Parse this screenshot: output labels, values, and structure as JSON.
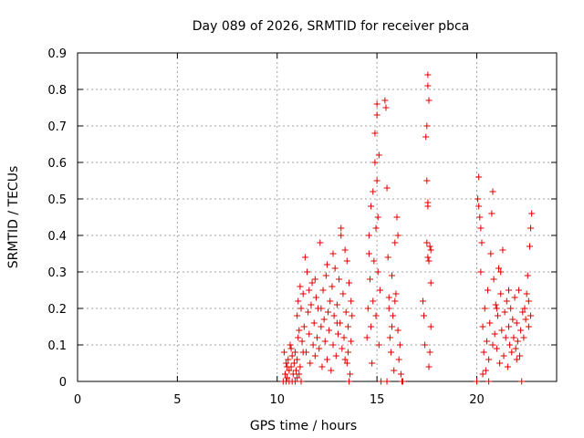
{
  "chart_data": {
    "type": "scatter",
    "title": "Day 089 of 2026, SRMTID for receiver pbca",
    "xlabel": "GPS time / hours",
    "ylabel": "SRMTID / TECUs",
    "xlim": [
      0,
      24
    ],
    "ylim": [
      0,
      0.9
    ],
    "xticks": [
      0,
      5,
      10,
      15,
      20
    ],
    "yticks": [
      0,
      0.1,
      0.2,
      0.3,
      0.4,
      0.5,
      0.6,
      0.7,
      0.8,
      0.9
    ],
    "grid": true,
    "legend": "none",
    "marker": "+",
    "color": "#dd0000",
    "series": [
      {
        "points": [
          [
            10.3,
            0.0
          ],
          [
            10.35,
            0.08
          ],
          [
            10.4,
            0.02
          ],
          [
            10.45,
            0.05
          ],
          [
            10.5,
            0.01
          ],
          [
            10.55,
            0.06
          ],
          [
            10.6,
            0.03
          ],
          [
            10.65,
            0.1
          ],
          [
            10.7,
            0.04
          ],
          [
            10.75,
            0.07
          ],
          [
            10.8,
            0.02
          ],
          [
            10.85,
            0.05
          ],
          [
            10.9,
            0.08
          ],
          [
            10.95,
            0.03
          ],
          [
            11.0,
            0.06
          ],
          [
            11.05,
            0.12
          ],
          [
            11.1,
            0.02
          ],
          [
            10.45,
            0.0
          ],
          [
            10.6,
            0.0
          ],
          [
            10.75,
            0.0
          ],
          [
            10.9,
            0.0
          ],
          [
            11.2,
            0.0
          ],
          [
            10.5,
            0.04
          ],
          [
            10.7,
            0.09
          ],
          [
            11.0,
            0.01
          ],
          [
            11.15,
            0.04
          ],
          [
            11.0,
            0.18
          ],
          [
            11.05,
            0.22
          ],
          [
            11.1,
            0.14
          ],
          [
            11.15,
            0.26
          ],
          [
            11.2,
            0.2
          ],
          [
            11.25,
            0.11
          ],
          [
            11.3,
            0.24
          ],
          [
            11.35,
            0.15
          ],
          [
            11.4,
            0.34
          ],
          [
            11.45,
            0.08
          ],
          [
            11.5,
            0.3
          ],
          [
            11.55,
            0.19
          ],
          [
            11.6,
            0.13
          ],
          [
            11.65,
            0.05
          ],
          [
            11.7,
            0.21
          ],
          [
            11.75,
            0.27
          ],
          [
            11.8,
            0.1
          ],
          [
            11.85,
            0.16
          ],
          [
            11.9,
            0.07
          ],
          [
            11.95,
            0.23
          ],
          [
            12.0,
            0.12
          ],
          [
            12.05,
            0.2
          ],
          [
            12.1,
            0.09
          ],
          [
            12.15,
            0.38
          ],
          [
            12.2,
            0.15
          ],
          [
            12.25,
            0.04
          ],
          [
            12.3,
            0.25
          ],
          [
            12.35,
            0.17
          ],
          [
            12.4,
            0.11
          ],
          [
            12.45,
            0.29
          ],
          [
            12.5,
            0.06
          ],
          [
            12.55,
            0.19
          ],
          [
            12.6,
            0.14
          ],
          [
            12.65,
            0.22
          ],
          [
            12.7,
            0.03
          ],
          [
            12.75,
            0.26
          ],
          [
            12.8,
            0.1
          ],
          [
            12.85,
            0.18
          ],
          [
            12.9,
            0.31
          ],
          [
            12.95,
            0.07
          ],
          [
            13.0,
            0.21
          ],
          [
            13.05,
            0.13
          ],
          [
            13.1,
            0.28
          ],
          [
            13.15,
            0.16
          ],
          [
            13.2,
            0.4
          ],
          [
            13.25,
            0.09
          ],
          [
            13.3,
            0.24
          ],
          [
            13.35,
            0.12
          ],
          [
            13.4,
            0.36
          ],
          [
            13.45,
            0.19
          ],
          [
            13.5,
            0.05
          ],
          [
            13.55,
            0.15
          ],
          [
            13.6,
            0.27
          ],
          [
            13.65,
            0.02
          ],
          [
            13.7,
            0.11
          ],
          [
            13.75,
            0.18
          ],
          [
            13.5,
            0.33
          ],
          [
            13.55,
            0.08
          ],
          [
            13.6,
            0.0
          ],
          [
            13.2,
            0.42
          ],
          [
            12.8,
            0.35
          ],
          [
            12.5,
            0.32
          ],
          [
            12.2,
            0.2
          ],
          [
            11.9,
            0.28
          ],
          [
            11.6,
            0.25
          ],
          [
            11.3,
            0.08
          ],
          [
            13.0,
            0.16
          ],
          [
            13.7,
            0.22
          ],
          [
            13.4,
            0.06
          ],
          [
            14.5,
            0.12
          ],
          [
            14.55,
            0.2
          ],
          [
            14.6,
            0.4
          ],
          [
            14.65,
            0.28
          ],
          [
            14.7,
            0.48
          ],
          [
            14.75,
            0.05
          ],
          [
            14.8,
            0.52
          ],
          [
            14.85,
            0.33
          ],
          [
            14.9,
            0.6
          ],
          [
            14.95,
            0.18
          ],
          [
            15.0,
            0.73
          ],
          [
            15.05,
            0.45
          ],
          [
            15.1,
            0.62
          ],
          [
            15.15,
            0.25
          ],
          [
            15.0,
            0.76
          ],
          [
            14.9,
            0.68
          ],
          [
            15.05,
            0.3
          ],
          [
            15.1,
            0.1
          ],
          [
            15.2,
            0.0
          ],
          [
            14.6,
            0.35
          ],
          [
            14.7,
            0.15
          ],
          [
            14.8,
            0.22
          ],
          [
            15.0,
            0.55
          ],
          [
            14.95,
            0.42
          ],
          [
            15.4,
            0.77
          ],
          [
            15.45,
            0.75
          ],
          [
            15.5,
            0.53
          ],
          [
            15.55,
            0.34
          ],
          [
            15.6,
            0.2
          ],
          [
            15.65,
            0.12
          ],
          [
            15.7,
            0.08
          ],
          [
            15.75,
            0.29
          ],
          [
            15.8,
            0.18
          ],
          [
            15.85,
            0.03
          ],
          [
            15.9,
            0.38
          ],
          [
            15.95,
            0.24
          ],
          [
            16.0,
            0.45
          ],
          [
            16.05,
            0.14
          ],
          [
            16.1,
            0.06
          ],
          [
            16.15,
            0.1
          ],
          [
            16.2,
            0.02
          ],
          [
            16.25,
            0.0
          ],
          [
            16.3,
            0.0
          ],
          [
            15.5,
            0.0
          ],
          [
            15.6,
            0.23
          ],
          [
            15.75,
            0.15
          ],
          [
            15.9,
            0.22
          ],
          [
            16.05,
            0.4
          ],
          [
            17.3,
            0.22
          ],
          [
            17.35,
            0.18
          ],
          [
            17.4,
            0.1
          ],
          [
            17.45,
            0.67
          ],
          [
            17.5,
            0.7
          ],
          [
            17.55,
            0.84
          ],
          [
            17.55,
            0.81
          ],
          [
            17.6,
            0.77
          ],
          [
            17.5,
            0.55
          ],
          [
            17.55,
            0.49
          ],
          [
            17.55,
            0.48
          ],
          [
            17.5,
            0.38
          ],
          [
            17.55,
            0.34
          ],
          [
            17.6,
            0.33
          ],
          [
            17.65,
            0.37
          ],
          [
            17.7,
            0.36
          ],
          [
            17.7,
            0.15
          ],
          [
            17.65,
            0.08
          ],
          [
            17.6,
            0.04
          ],
          [
            17.7,
            0.27
          ],
          [
            20.0,
            0.0
          ],
          [
            20.05,
            0.5
          ],
          [
            20.1,
            0.56
          ],
          [
            20.15,
            0.45
          ],
          [
            20.2,
            0.42
          ],
          [
            20.25,
            0.38
          ],
          [
            20.1,
            0.48
          ],
          [
            20.2,
            0.3
          ],
          [
            20.3,
            0.15
          ],
          [
            20.35,
            0.08
          ],
          [
            20.4,
            0.2
          ],
          [
            20.45,
            0.03
          ],
          [
            20.5,
            0.11
          ],
          [
            20.55,
            0.25
          ],
          [
            20.6,
            0.06
          ],
          [
            20.65,
            0.16
          ],
          [
            20.7,
            0.35
          ],
          [
            20.75,
            0.46
          ],
          [
            20.8,
            0.52
          ],
          [
            20.85,
            0.28
          ],
          [
            20.9,
            0.13
          ],
          [
            20.95,
            0.21
          ],
          [
            21.0,
            0.09
          ],
          [
            21.05,
            0.18
          ],
          [
            21.1,
            0.31
          ],
          [
            21.15,
            0.05
          ],
          [
            21.2,
            0.24
          ],
          [
            21.25,
            0.14
          ],
          [
            21.3,
            0.36
          ],
          [
            21.35,
            0.07
          ],
          [
            21.4,
            0.19
          ],
          [
            21.45,
            0.12
          ],
          [
            21.5,
            0.22
          ],
          [
            21.55,
            0.04
          ],
          [
            21.6,
            0.15
          ],
          [
            21.65,
            0.1
          ],
          [
            21.7,
            0.2
          ],
          [
            21.75,
            0.08
          ],
          [
            21.8,
            0.17
          ],
          [
            21.85,
            0.12
          ],
          [
            21.9,
            0.23
          ],
          [
            21.95,
            0.09
          ],
          [
            22.0,
            0.16
          ],
          [
            22.05,
            0.11
          ],
          [
            22.1,
            0.25
          ],
          [
            22.15,
            0.07
          ],
          [
            22.2,
            0.14
          ],
          [
            22.25,
            0.0
          ],
          [
            22.3,
            0.19
          ],
          [
            22.35,
            0.12
          ],
          [
            22.4,
            0.2
          ],
          [
            22.45,
            0.17
          ],
          [
            22.5,
            0.24
          ],
          [
            22.55,
            0.29
          ],
          [
            22.6,
            0.22
          ],
          [
            22.65,
            0.37
          ],
          [
            22.7,
            0.42
          ],
          [
            22.75,
            0.46
          ],
          [
            22.6,
            0.15
          ],
          [
            22.7,
            0.18
          ],
          [
            21.2,
            0.3
          ],
          [
            21.0,
            0.2
          ],
          [
            20.8,
            0.1
          ],
          [
            20.3,
            0.02
          ],
          [
            20.6,
            0.0
          ],
          [
            21.6,
            0.25
          ],
          [
            22.0,
            0.06
          ]
        ]
      }
    ]
  }
}
